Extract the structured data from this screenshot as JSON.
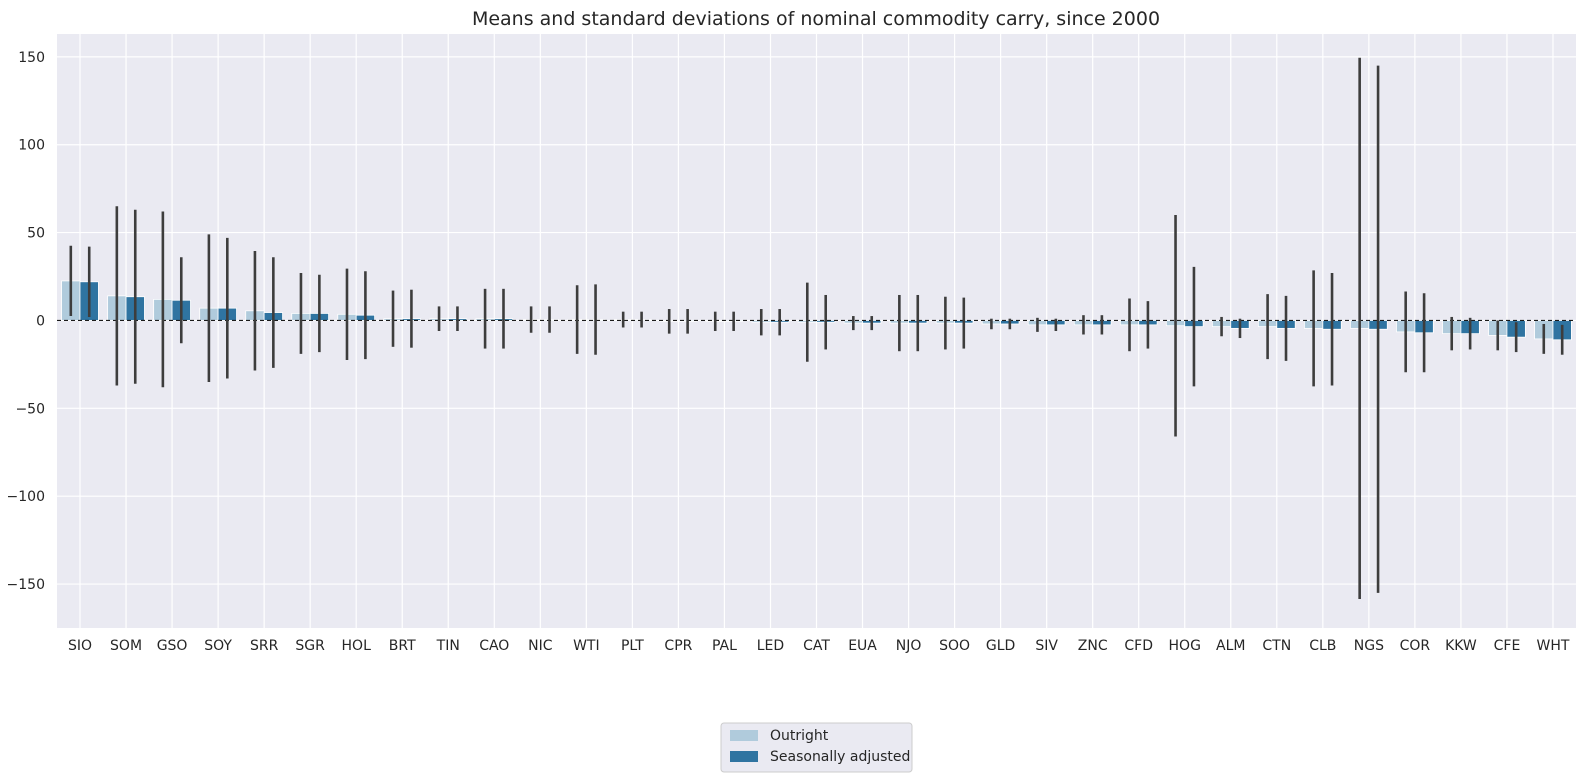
{
  "chart_data": {
    "type": "bar",
    "title": "Means and standard deviations of nominal commodity carry, since 2000",
    "xlabel": "",
    "ylabel": "",
    "ylim": [
      -175,
      163
    ],
    "yticks": [
      150,
      100,
      50,
      0,
      -50,
      -100,
      -150
    ],
    "grid": true,
    "legend_position": "bottom-center",
    "categories": [
      "SIO",
      "SOM",
      "GSO",
      "SOY",
      "SRR",
      "SGR",
      "HOL",
      "BRT",
      "TIN",
      "CAO",
      "NIC",
      "WTI",
      "PLT",
      "CPR",
      "PAL",
      "LED",
      "CAT",
      "EUA",
      "NJO",
      "SOO",
      "GLD",
      "SIV",
      "ZNC",
      "CFD",
      "HOG",
      "ALM",
      "CTN",
      "CLB",
      "NGS",
      "COR",
      "KKW",
      "CFE",
      "WHT"
    ],
    "series": [
      {
        "name": "Outright",
        "color": "#b0cbdc",
        "values": [
          22.5,
          14,
          12,
          7,
          5.5,
          4,
          3.5,
          1,
          1,
          1,
          0.5,
          0.5,
          0.5,
          -0.5,
          -0.5,
          -1,
          -1,
          -1.5,
          -1.5,
          -1.5,
          -2,
          -2.5,
          -2.5,
          -2.5,
          -3,
          -3.5,
          -3.5,
          -4.5,
          -4.5,
          -6.5,
          -7.5,
          -8.5,
          -10.5
        ],
        "std": [
          20,
          51,
          50,
          42,
          34,
          23,
          26,
          16,
          7,
          17,
          7.5,
          19.5,
          4.5,
          7,
          5.5,
          7.5,
          22.5,
          4,
          16,
          15,
          3,
          4,
          5.5,
          15,
          63,
          5.5,
          18.5,
          33,
          154,
          23,
          9.5,
          8.5,
          8.5
        ]
      },
      {
        "name": "Seasonally adjusted",
        "color": "#2f74a1",
        "values": [
          22,
          13.5,
          11.5,
          7,
          4.5,
          4,
          3,
          1,
          1,
          1,
          0.5,
          0.5,
          0.5,
          -0.5,
          -0.5,
          -1,
          -1,
          -1.5,
          -1.5,
          -1.5,
          -2,
          -2.5,
          -2.5,
          -2.5,
          -3.5,
          -4.5,
          -4.5,
          -5,
          -5,
          -7,
          -7.5,
          -9.5,
          -11
        ],
        "std": [
          20,
          49.5,
          24.5,
          40,
          31.5,
          22,
          25,
          16.5,
          7,
          17,
          7.5,
          20,
          4.5,
          7,
          5.5,
          7.5,
          15.5,
          4,
          16,
          14.5,
          3,
          3.5,
          5.5,
          13.5,
          34,
          5.5,
          18.5,
          32,
          150,
          22.5,
          9,
          8.5,
          8.5
        ]
      }
    ]
  }
}
